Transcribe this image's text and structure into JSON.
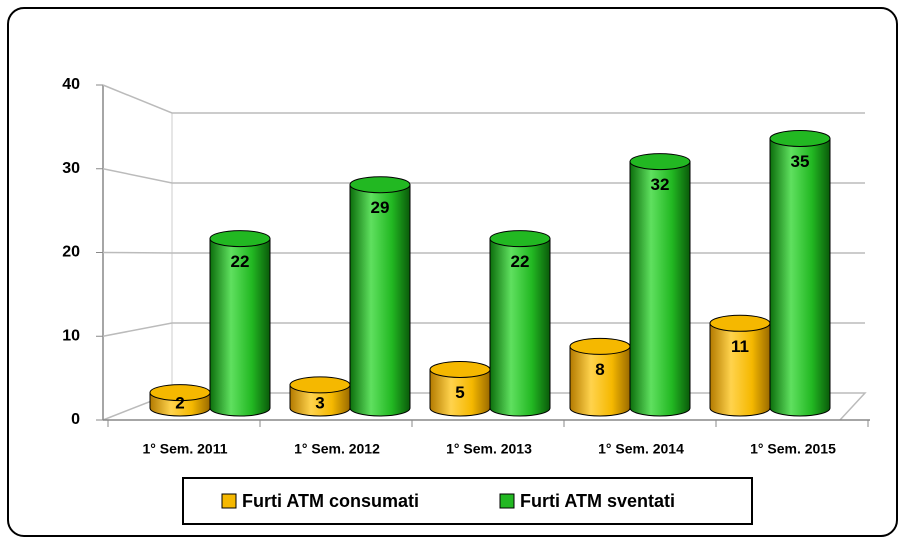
{
  "chart_data": {
    "type": "bar3d",
    "categories": [
      "1° Sem. 2011",
      "1° Sem. 2012",
      "1° Sem. 2013",
      "1° Sem. 2014",
      "1° Sem. 2015"
    ],
    "series": [
      {
        "name": "Furti ATM consumati",
        "color": "#f5b800",
        "values": [
          2,
          3,
          5,
          8,
          11
        ]
      },
      {
        "name": "Furti ATM sventati",
        "color": "#22b822",
        "values": [
          22,
          29,
          22,
          32,
          35
        ]
      }
    ],
    "ylim": [
      0,
      40
    ],
    "yticks": [
      0,
      10,
      20,
      30,
      40
    ],
    "grid": true
  }
}
